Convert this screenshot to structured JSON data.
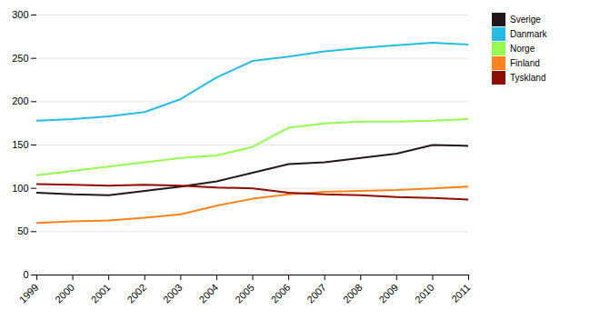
{
  "chart_data": {
    "type": "line",
    "x": [
      1999,
      2000,
      2001,
      2002,
      2003,
      2004,
      2005,
      2006,
      2007,
      2008,
      2009,
      2010,
      2011
    ],
    "series": [
      {
        "name": "Sverige",
        "values": [
          95,
          93,
          92,
          97,
          102,
          108,
          118,
          128,
          130,
          135,
          140,
          150,
          149
        ]
      },
      {
        "name": "Danmark",
        "values": [
          178,
          180,
          183,
          188,
          203,
          228,
          247,
          252,
          258,
          262,
          265,
          268,
          266
        ]
      },
      {
        "name": "Norge",
        "values": [
          115,
          120,
          125,
          130,
          135,
          138,
          148,
          170,
          175,
          177,
          177,
          178,
          180
        ]
      },
      {
        "name": "Finland",
        "values": [
          60,
          62,
          63,
          66,
          70,
          80,
          88,
          93,
          96,
          97,
          98,
          100,
          102
        ]
      },
      {
        "name": "Tyskland",
        "values": [
          105,
          104,
          103,
          104,
          103,
          101,
          100,
          95,
          93,
          92,
          90,
          89,
          87
        ]
      }
    ],
    "xlim": [
      1999,
      2011
    ],
    "xticks": [
      1999,
      2000,
      2001,
      2002,
      2003,
      2004,
      2005,
      2006,
      2007,
      2008,
      2009,
      2010,
      2011
    ],
    "ylim": [
      0,
      300
    ],
    "yticks": [
      0,
      50,
      100,
      150,
      200,
      250,
      300
    ],
    "grid": true,
    "legend": "right"
  }
}
